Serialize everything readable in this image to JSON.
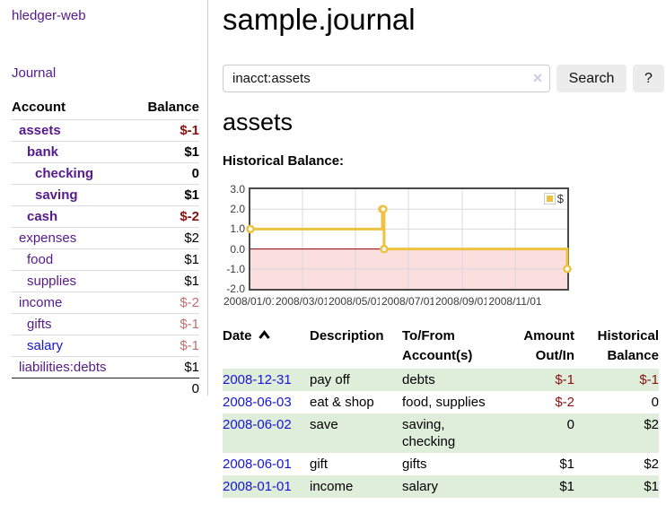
{
  "colors": {
    "link_purple": "#551A8B",
    "link_blue": "#1616D6",
    "negative_strong": "#8B1010",
    "negative_soft": "#C17070",
    "stripe_green": "#DFEEDA",
    "button_bg": "#ECECEC",
    "chart_line": "#EDC240"
  },
  "sidebar": {
    "brand": "hledger-web",
    "nav_journal": "Journal",
    "accounts": {
      "headers": {
        "account": "Account",
        "balance": "Balance"
      },
      "rows": [
        {
          "account": "assets",
          "depth": 1,
          "bold": true,
          "balance": "$-1",
          "negative": "strong"
        },
        {
          "account": "bank",
          "depth": 2,
          "bold": true,
          "balance": "$1"
        },
        {
          "account": "checking",
          "depth": 3,
          "bold": true,
          "balance": "0"
        },
        {
          "account": "saving",
          "depth": 3,
          "bold": true,
          "balance": "$1"
        },
        {
          "account": "cash",
          "depth": 2,
          "bold": true,
          "balance": "$-2",
          "negative": "strong"
        },
        {
          "account": "expenses",
          "depth": 1,
          "bold": false,
          "balance": "$2"
        },
        {
          "account": "food",
          "depth": 2,
          "bold": false,
          "balance": "$1"
        },
        {
          "account": "supplies",
          "depth": 2,
          "bold": false,
          "balance": "$1"
        },
        {
          "account": "income",
          "depth": 1,
          "bold": false,
          "balance": "$-2",
          "negative": "soft"
        },
        {
          "account": "gifts",
          "depth": 2,
          "bold": false,
          "balance": "$-1",
          "negative": "soft"
        },
        {
          "account": "salary",
          "depth": 2,
          "bold": false,
          "balance": "$-1",
          "negative": "soft",
          "link_style": "blue"
        },
        {
          "account": "liabilities:debts",
          "depth": 1,
          "bold": false,
          "balance": "$1"
        }
      ],
      "total": "0"
    }
  },
  "main": {
    "title": "sample.journal",
    "search": {
      "value": "inacct:assets",
      "clear_icon": "×",
      "button_label": "Search",
      "help_label": "?"
    },
    "heading": "assets",
    "chart_title": "Historical Balance:"
  },
  "register": {
    "headers": [
      {
        "label": "Date",
        "sorted": "ascending",
        "align": "left"
      },
      {
        "label": "Description",
        "align": "left"
      },
      {
        "label": "To/From Account(s)",
        "align": "left"
      },
      {
        "label": "Amount Out/In",
        "align": "right"
      },
      {
        "label": "Historical Balance",
        "align": "right"
      }
    ],
    "rows": [
      {
        "date": "2008-12-31",
        "description": "pay off",
        "accounts": "debts",
        "amount": "$-1",
        "amount_negative": true,
        "balance": "$-1",
        "balance_negative": true
      },
      {
        "date": "2008-06-03",
        "description": "eat & shop",
        "accounts": "food, supplies",
        "amount": "$-2",
        "amount_negative": true,
        "balance": "0",
        "balance_negative": false
      },
      {
        "date": "2008-06-02",
        "description": "save",
        "accounts": "saving, checking",
        "amount": "0",
        "amount_negative": false,
        "balance": "$2",
        "balance_negative": false
      },
      {
        "date": "2008-06-01",
        "description": "gift",
        "accounts": "gifts",
        "amount": "$1",
        "amount_negative": false,
        "balance": "$2",
        "balance_negative": false
      },
      {
        "date": "2008-01-01",
        "description": "income",
        "accounts": "salary",
        "amount": "$1",
        "amount_negative": false,
        "balance": "$1",
        "balance_negative": false
      }
    ]
  },
  "chart_data": {
    "type": "line",
    "step": true,
    "title": "Historical Balance",
    "series": [
      {
        "name": "$",
        "color": "#EDC240",
        "points": [
          [
            "2008-01-01",
            1
          ],
          [
            "2008-06-01",
            2
          ],
          [
            "2008-06-02",
            2
          ],
          [
            "2008-06-03",
            0
          ],
          [
            "2008-12-31",
            -1
          ]
        ]
      }
    ],
    "xlim": [
      "2008-01-01",
      "2008-12-31"
    ],
    "ylim": [
      -2,
      3
    ],
    "xticks": [
      {
        "date": "2008-01-01",
        "label": "2008/01/01"
      },
      {
        "date": "2008-03-01",
        "label": "2008/03/01"
      },
      {
        "date": "2008-05-01",
        "label": "2008/05/01"
      },
      {
        "date": "2008-07-01",
        "label": "2008/07/01"
      },
      {
        "date": "2008-09-01",
        "label": "2008/09/01"
      },
      {
        "date": "2008-11-01",
        "label": "2008/11/01"
      }
    ],
    "yticks": [
      {
        "v": 3,
        "label": "3.0"
      },
      {
        "v": 2,
        "label": "2.0"
      },
      {
        "v": 1,
        "label": "1.0"
      },
      {
        "v": 0,
        "label": "0.0"
      },
      {
        "v": -1,
        "label": "-1.0"
      },
      {
        "v": -2,
        "label": "-2.0"
      }
    ],
    "legend": {
      "position": "top-right",
      "label": "$"
    },
    "grid": true,
    "negative_fill": "#FBDEDE",
    "zero_line_color": "#8B0000"
  }
}
